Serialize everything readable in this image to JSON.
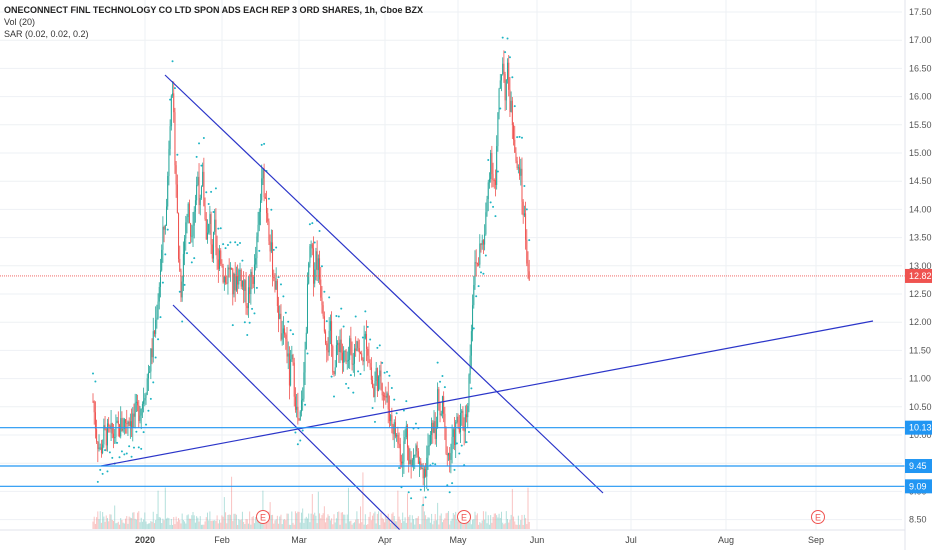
{
  "legend": {
    "title": "ONECONNECT FINL TECHNOLOGY CO LTD SPON ADS EACH REP 3 ORD SHARES, 1h, Cboe BZX",
    "vol": "Vol (20)",
    "sar": "SAR (0.02, 0.02, 0.2)"
  },
  "colors": {
    "up": "#26a69a",
    "down": "#ef5350",
    "sar": "#1fb5c4",
    "trendline": "#2b35c9",
    "hline": "#2196f3",
    "last_price": "#ef5350",
    "earnings": "#ef5350",
    "grid": "#eef1f4"
  },
  "earnings_marker": "E",
  "chart_data": {
    "type": "candlestick",
    "y_ticks": [
      "17.50",
      "17.00",
      "16.50",
      "16.00",
      "15.50",
      "15.00",
      "14.50",
      "14.00",
      "13.50",
      "13.00",
      "12.50",
      "12.00",
      "11.50",
      "11.00",
      "10.50",
      "10.00",
      "9.50",
      "9.00",
      "8.50"
    ],
    "x_ticks": [
      {
        "label": "2020",
        "bold": true
      },
      {
        "label": "Feb",
        "bold": false
      },
      {
        "label": "Mar",
        "bold": false
      },
      {
        "label": "Apr",
        "bold": false
      },
      {
        "label": "May",
        "bold": false
      },
      {
        "label": "Jun",
        "bold": false
      },
      {
        "label": "Jul",
        "bold": false
      },
      {
        "label": "Aug",
        "bold": false
      },
      {
        "label": "Sep",
        "bold": false
      }
    ],
    "ylim": [
      8.4,
      17.7
    ],
    "price_path": [
      [
        0,
        10.6
      ],
      [
        3,
        10.0
      ],
      [
        6,
        9.7
      ],
      [
        9,
        10.0
      ],
      [
        13,
        10.0
      ],
      [
        17,
        10.0
      ],
      [
        21,
        10.1
      ],
      [
        25,
        10.2
      ],
      [
        29,
        10.3
      ],
      [
        33,
        10.3
      ],
      [
        37,
        10.4
      ],
      [
        41,
        10.6
      ],
      [
        45,
        11.0
      ],
      [
        49,
        11.5
      ],
      [
        52,
        12.0
      ],
      [
        55,
        12.7
      ],
      [
        58,
        13.5
      ],
      [
        61,
        14.0
      ],
      [
        63,
        15.2
      ],
      [
        65,
        16.2
      ],
      [
        67,
        15.5
      ],
      [
        69,
        14.5
      ],
      [
        71,
        13.2
      ],
      [
        73,
        12.6
      ],
      [
        75,
        13.2
      ],
      [
        77,
        13.8
      ],
      [
        79,
        14.0
      ],
      [
        81,
        13.6
      ],
      [
        83,
        13.9
      ],
      [
        85,
        14.2
      ],
      [
        87,
        14.6
      ],
      [
        89,
        14.0
      ],
      [
        91,
        14.5
      ],
      [
        93,
        13.8
      ],
      [
        95,
        13.5
      ],
      [
        97,
        13.8
      ],
      [
        99,
        13.2
      ],
      [
        101,
        13.6
      ],
      [
        103,
        13.0
      ],
      [
        105,
        13.3
      ],
      [
        107,
        13.0
      ],
      [
        110,
        12.7
      ],
      [
        113,
        13.0
      ],
      [
        116,
        12.6
      ],
      [
        119,
        12.8
      ],
      [
        122,
        12.9
      ],
      [
        125,
        12.6
      ],
      [
        128,
        12.4
      ],
      [
        131,
        12.7
      ],
      [
        134,
        12.9
      ],
      [
        137,
        13.6
      ],
      [
        139,
        14.2
      ],
      [
        141,
        14.6
      ],
      [
        143,
        14.2
      ],
      [
        145,
        13.9
      ],
      [
        147,
        13.4
      ],
      [
        149,
        13.0
      ],
      [
        151,
        12.7
      ],
      [
        153,
        12.4
      ],
      [
        155,
        12.0
      ],
      [
        157,
        11.6
      ],
      [
        159,
        11.8
      ],
      [
        161,
        11.5
      ],
      [
        163,
        11.0
      ],
      [
        165,
        11.3
      ],
      [
        167,
        10.9
      ],
      [
        169,
        10.4
      ],
      [
        171,
        10.1
      ],
      [
        173,
        10.5
      ],
      [
        175,
        11.0
      ],
      [
        177,
        12.0
      ],
      [
        179,
        13.0
      ],
      [
        181,
        13.3
      ],
      [
        183,
        12.9
      ],
      [
        185,
        13.2
      ],
      [
        187,
        13.0
      ],
      [
        189,
        12.6
      ],
      [
        191,
        12.3
      ],
      [
        193,
        11.8
      ],
      [
        195,
        11.6
      ],
      [
        197,
        11.8
      ],
      [
        199,
        11.3
      ],
      [
        201,
        11.2
      ],
      [
        203,
        11.6
      ],
      [
        205,
        11.7
      ],
      [
        207,
        11.3
      ],
      [
        209,
        11.4
      ],
      [
        211,
        11.1
      ],
      [
        213,
        11.5
      ],
      [
        215,
        11.2
      ],
      [
        217,
        11.5
      ],
      [
        219,
        11.8
      ],
      [
        221,
        11.4
      ],
      [
        223,
        11.3
      ],
      [
        225,
        11.6
      ],
      [
        227,
        11.7
      ],
      [
        229,
        11.4
      ],
      [
        231,
        11.0
      ],
      [
        233,
        10.7
      ],
      [
        235,
        11.1
      ],
      [
        237,
        10.9
      ],
      [
        239,
        11.0
      ],
      [
        241,
        10.8
      ],
      [
        244,
        10.6
      ],
      [
        247,
        10.3
      ],
      [
        250,
        10.1
      ],
      [
        253,
        9.9
      ],
      [
        256,
        9.6
      ],
      [
        258,
        9.8
      ],
      [
        260,
        10.1
      ],
      [
        262,
        9.7
      ],
      [
        264,
        9.4
      ],
      [
        266,
        9.6
      ],
      [
        268,
        9.8
      ],
      [
        270,
        9.5
      ],
      [
        272,
        9.3
      ],
      [
        274,
        9.1
      ],
      [
        276,
        9.4
      ],
      [
        278,
        9.7
      ],
      [
        280,
        9.9
      ],
      [
        282,
        10.2
      ],
      [
        284,
        10.0
      ],
      [
        286,
        10.6
      ],
      [
        288,
        10.3
      ],
      [
        290,
        10.5
      ],
      [
        292,
        10.0
      ],
      [
        294,
        9.7
      ],
      [
        296,
        9.6
      ],
      [
        298,
        9.8
      ],
      [
        300,
        10.0
      ],
      [
        302,
        10.2
      ],
      [
        304,
        10.1
      ],
      [
        306,
        10.3
      ],
      [
        308,
        10.2
      ],
      [
        310,
        10.4
      ],
      [
        312,
        11.0
      ],
      [
        314,
        12.0
      ],
      [
        316,
        12.8
      ],
      [
        318,
        13.0
      ],
      [
        320,
        13.1
      ],
      [
        322,
        13.5
      ],
      [
        324,
        13.3
      ],
      [
        326,
        13.8
      ],
      [
        328,
        14.5
      ],
      [
        330,
        15.0
      ],
      [
        332,
        14.6
      ],
      [
        334,
        14.4
      ],
      [
        336,
        15.6
      ],
      [
        338,
        16.3
      ],
      [
        340,
        16.7
      ],
      [
        342,
        16.1
      ],
      [
        344,
        16.4
      ],
      [
        346,
        15.9
      ],
      [
        348,
        15.6
      ],
      [
        350,
        15.2
      ],
      [
        352,
        14.6
      ],
      [
        354,
        14.8
      ],
      [
        356,
        14.2
      ],
      [
        358,
        13.8
      ],
      [
        360,
        13.2
      ],
      [
        362,
        12.8
      ]
    ],
    "last_price": {
      "value": 12.82,
      "label": "12.82"
    },
    "horizontal_levels": [
      {
        "value": 10.13,
        "label": "10.13"
      },
      {
        "value": 9.45,
        "label": "9.45"
      },
      {
        "value": 9.09,
        "label": "9.09"
      }
    ],
    "earnings_dates": [
      "late Jan 2020",
      "early May 2020",
      "early Sep 2020"
    ]
  }
}
